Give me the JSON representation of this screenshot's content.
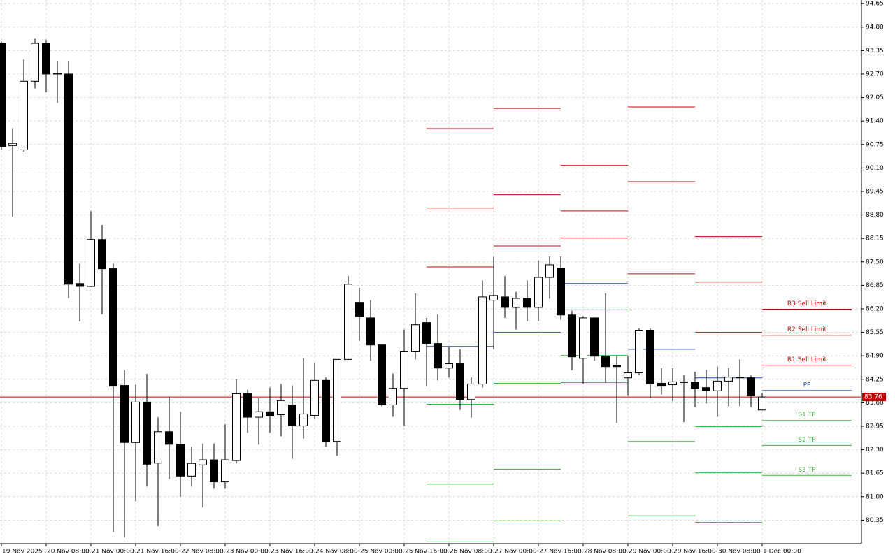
{
  "chart_data": {
    "type": "candlestick",
    "categories": [
      "19 Nov 2025",
      null,
      null,
      null,
      "20 Nov 08:00",
      null,
      null,
      null,
      "21 Nov 00:00",
      null,
      null,
      null,
      "21 Nov 16:00",
      null,
      null,
      null,
      "22 Nov 08:00",
      null,
      null,
      null,
      "23 Nov 00:00",
      null,
      null,
      null,
      "23 Nov 16:00",
      null,
      null,
      null,
      "24 Nov 08:00",
      null,
      null,
      null,
      "25 Nov 00:00",
      null,
      null,
      null,
      "25 Nov 16:00",
      null,
      null,
      null,
      "26 Nov 08:00",
      null,
      null,
      null,
      "27 Nov 00:00",
      null,
      null,
      null,
      "27 Nov 16:00",
      null,
      null,
      null,
      "28 Nov 08:00",
      null,
      null,
      null,
      "29 Nov 00:00",
      null,
      null,
      null,
      "29 Nov 16:00",
      null,
      null,
      null,
      "30 Nov 08:00",
      null,
      null,
      null,
      "1 Dec 00:00"
    ],
    "open": [
      93.55,
      90.72,
      90.6,
      92.5,
      93.55,
      92.72,
      92.7,
      86.9,
      86.82,
      88.12,
      87.31,
      84.08,
      82.5,
      83.62,
      81.93,
      82.8,
      82.45,
      81.57,
      81.88,
      82.02,
      81.41,
      82.0,
      83.85,
      83.2,
      83.35,
      83.27,
      83.54,
      82.96,
      83.25,
      84.22,
      82.53,
      84.8,
      86.38,
      85.95,
      85.2,
      83.54,
      84.0,
      85.01,
      85.82,
      85.24,
      84.56,
      84.68,
      83.69,
      84.12,
      86.44,
      86.53,
      86.24,
      86.49,
      86.24,
      87.07,
      87.33,
      86.03,
      84.83,
      85.95,
      84.89,
      84.64,
      84.29,
      84.43,
      85.61,
      84.14,
      84.1,
      84.18,
      84.17,
      84.02,
      83.93,
      84.2,
      84.31,
      84.29,
      83.4
    ],
    "high": [
      93.6,
      91.2,
      93.1,
      93.68,
      93.65,
      93.05,
      93.05,
      87.45,
      88.9,
      88.52,
      87.45,
      84.5,
      84.1,
      84.4,
      83.2,
      83.77,
      83.35,
      82.38,
      82.47,
      82.47,
      83.0,
      84.25,
      83.96,
      83.73,
      84.02,
      84.12,
      84.08,
      84.83,
      84.7,
      84.3,
      84.8,
      87.11,
      86.78,
      86.44,
      85.2,
      84.41,
      85.63,
      86.63,
      85.95,
      86.05,
      85.14,
      85.08,
      84.3,
      86.98,
      87.64,
      87.11,
      86.67,
      86.98,
      87.54,
      87.65,
      87.65,
      86.15,
      86.0,
      85.95,
      86.63,
      84.9,
      84.9,
      85.66,
      85.66,
      84.56,
      84.56,
      84.37,
      84.46,
      84.51,
      84.6,
      84.56,
      84.8,
      84.36,
      83.87
    ],
    "low": [
      90.6,
      88.75,
      90.55,
      92.3,
      92.2,
      91.9,
      86.5,
      85.85,
      86.8,
      86.05,
      80.02,
      79.87,
      80.87,
      81.28,
      80.18,
      81.49,
      81.0,
      81.28,
      80.7,
      81.22,
      81.22,
      81.92,
      82.77,
      82.44,
      82.77,
      82.67,
      82.05,
      82.61,
      83.15,
      82.38,
      82.13,
      84.8,
      85.32,
      84.76,
      83.5,
      83.21,
      82.96,
      84.8,
      84.06,
      84.22,
      84.3,
      83.4,
      83.19,
      84.02,
      85.08,
      85.95,
      85.63,
      85.86,
      85.86,
      86.48,
      85.9,
      84.5,
      84.12,
      84.76,
      84.16,
      83.04,
      83.79,
      84.37,
      83.73,
      83.83,
      83.64,
      83.06,
      83.48,
      83.58,
      83.21,
      83.5,
      83.5,
      83.48,
      83.4
    ],
    "close": [
      90.69,
      90.78,
      92.5,
      93.55,
      92.7,
      92.7,
      86.88,
      86.82,
      88.12,
      87.31,
      84.06,
      82.5,
      83.62,
      81.9,
      82.8,
      82.45,
      81.57,
      81.92,
      82.02,
      81.41,
      82.02,
      83.85,
      83.2,
      83.35,
      83.23,
      83.66,
      82.96,
      83.29,
      84.22,
      82.53,
      84.8,
      86.88,
      85.99,
      85.2,
      83.54,
      84.0,
      85.01,
      85.76,
      85.24,
      84.56,
      84.68,
      83.69,
      84.12,
      86.53,
      86.57,
      86.24,
      86.49,
      86.24,
      87.07,
      87.42,
      86.03,
      84.87,
      85.95,
      84.89,
      84.6,
      84.6,
      84.43,
      85.61,
      84.12,
      84.06,
      84.18,
      84.17,
      84.0,
      83.93,
      84.2,
      84.31,
      84.29,
      83.79,
      83.76
    ],
    "up_color": "#ffffff",
    "down_color": "#000000",
    "ylim": [
      79.7,
      94.75
    ],
    "yticks": [
      94.65,
      {
        "value": 94.0,
        "label": "94.00"
      },
      93.35,
      {
        "value": 92.7,
        "label": "92.70"
      },
      92.05,
      {
        "value": 91.4,
        "label": "91.40"
      },
      90.75,
      {
        "value": 90.1,
        "label": "90.10"
      },
      89.45,
      {
        "value": 88.8,
        "label": "88.80"
      },
      88.15,
      {
        "value": 87.5,
        "label": "87.50"
      },
      86.85,
      {
        "value": 86.2,
        "label": "86.20"
      },
      85.55,
      {
        "value": 84.9,
        "label": "84.90"
      },
      84.25,
      {
        "value": 83.6,
        "label": "83.60"
      },
      82.95,
      {
        "value": 82.3,
        "label": "82.30"
      },
      81.65,
      {
        "value": 81.0,
        "label": "81.00"
      },
      80.35
    ],
    "grid": true,
    "resistance_color": "#d40000",
    "pivot_color": "#1f4fa8",
    "support_color": "#3cb83c",
    "pivots": [
      {
        "start": 38,
        "end": 44,
        "resistance": [
          91.19,
          88.99,
          87.36
        ],
        "pivot": 85.16,
        "support": [
          83.56,
          81.35,
          79.75
        ]
      },
      {
        "start": 44,
        "end": 50,
        "resistance": [
          91.75,
          89.36,
          87.94
        ],
        "pivot": 85.55,
        "support": [
          84.14,
          81.76,
          80.33
        ]
      },
      {
        "start": 50,
        "end": 56,
        "resistance": [
          90.17,
          88.91,
          88.16
        ],
        "pivot": 86.9,
        "support": [
          86.17,
          84.91,
          84.16
        ]
      },
      {
        "start": 56,
        "end": 62,
        "resistance": [
          91.79,
          89.72,
          87.17
        ],
        "pivot": 85.08,
        "support": [
          82.53,
          80.47
        ]
      },
      {
        "start": 62,
        "end": 68,
        "resistance": [
          88.2,
          86.94,
          85.55
        ],
        "pivot": 84.29,
        "support": [
          82.94,
          81.66,
          80.29
        ]
      }
    ],
    "order_levels": {
      "start": 68,
      "end": 76,
      "levels": [
        {
          "name": "R3 Sell Limit",
          "value": 86.19,
          "kind": "resistance"
        },
        {
          "name": "R2 Sell Limit",
          "value": 85.47,
          "kind": "resistance"
        },
        {
          "name": "R1 Sell Limit",
          "value": 84.64,
          "kind": "resistance"
        },
        {
          "name": "PP",
          "value": 83.94,
          "kind": "pivot"
        },
        {
          "name": "S1 TP",
          "value": 83.11,
          "kind": "support"
        },
        {
          "name": "S2 TP",
          "value": 82.42,
          "kind": "support"
        },
        {
          "name": "S3 TP",
          "value": 81.59,
          "kind": "support"
        }
      ]
    },
    "current_price": 83.76,
    "current_price_color": "#c00000"
  }
}
